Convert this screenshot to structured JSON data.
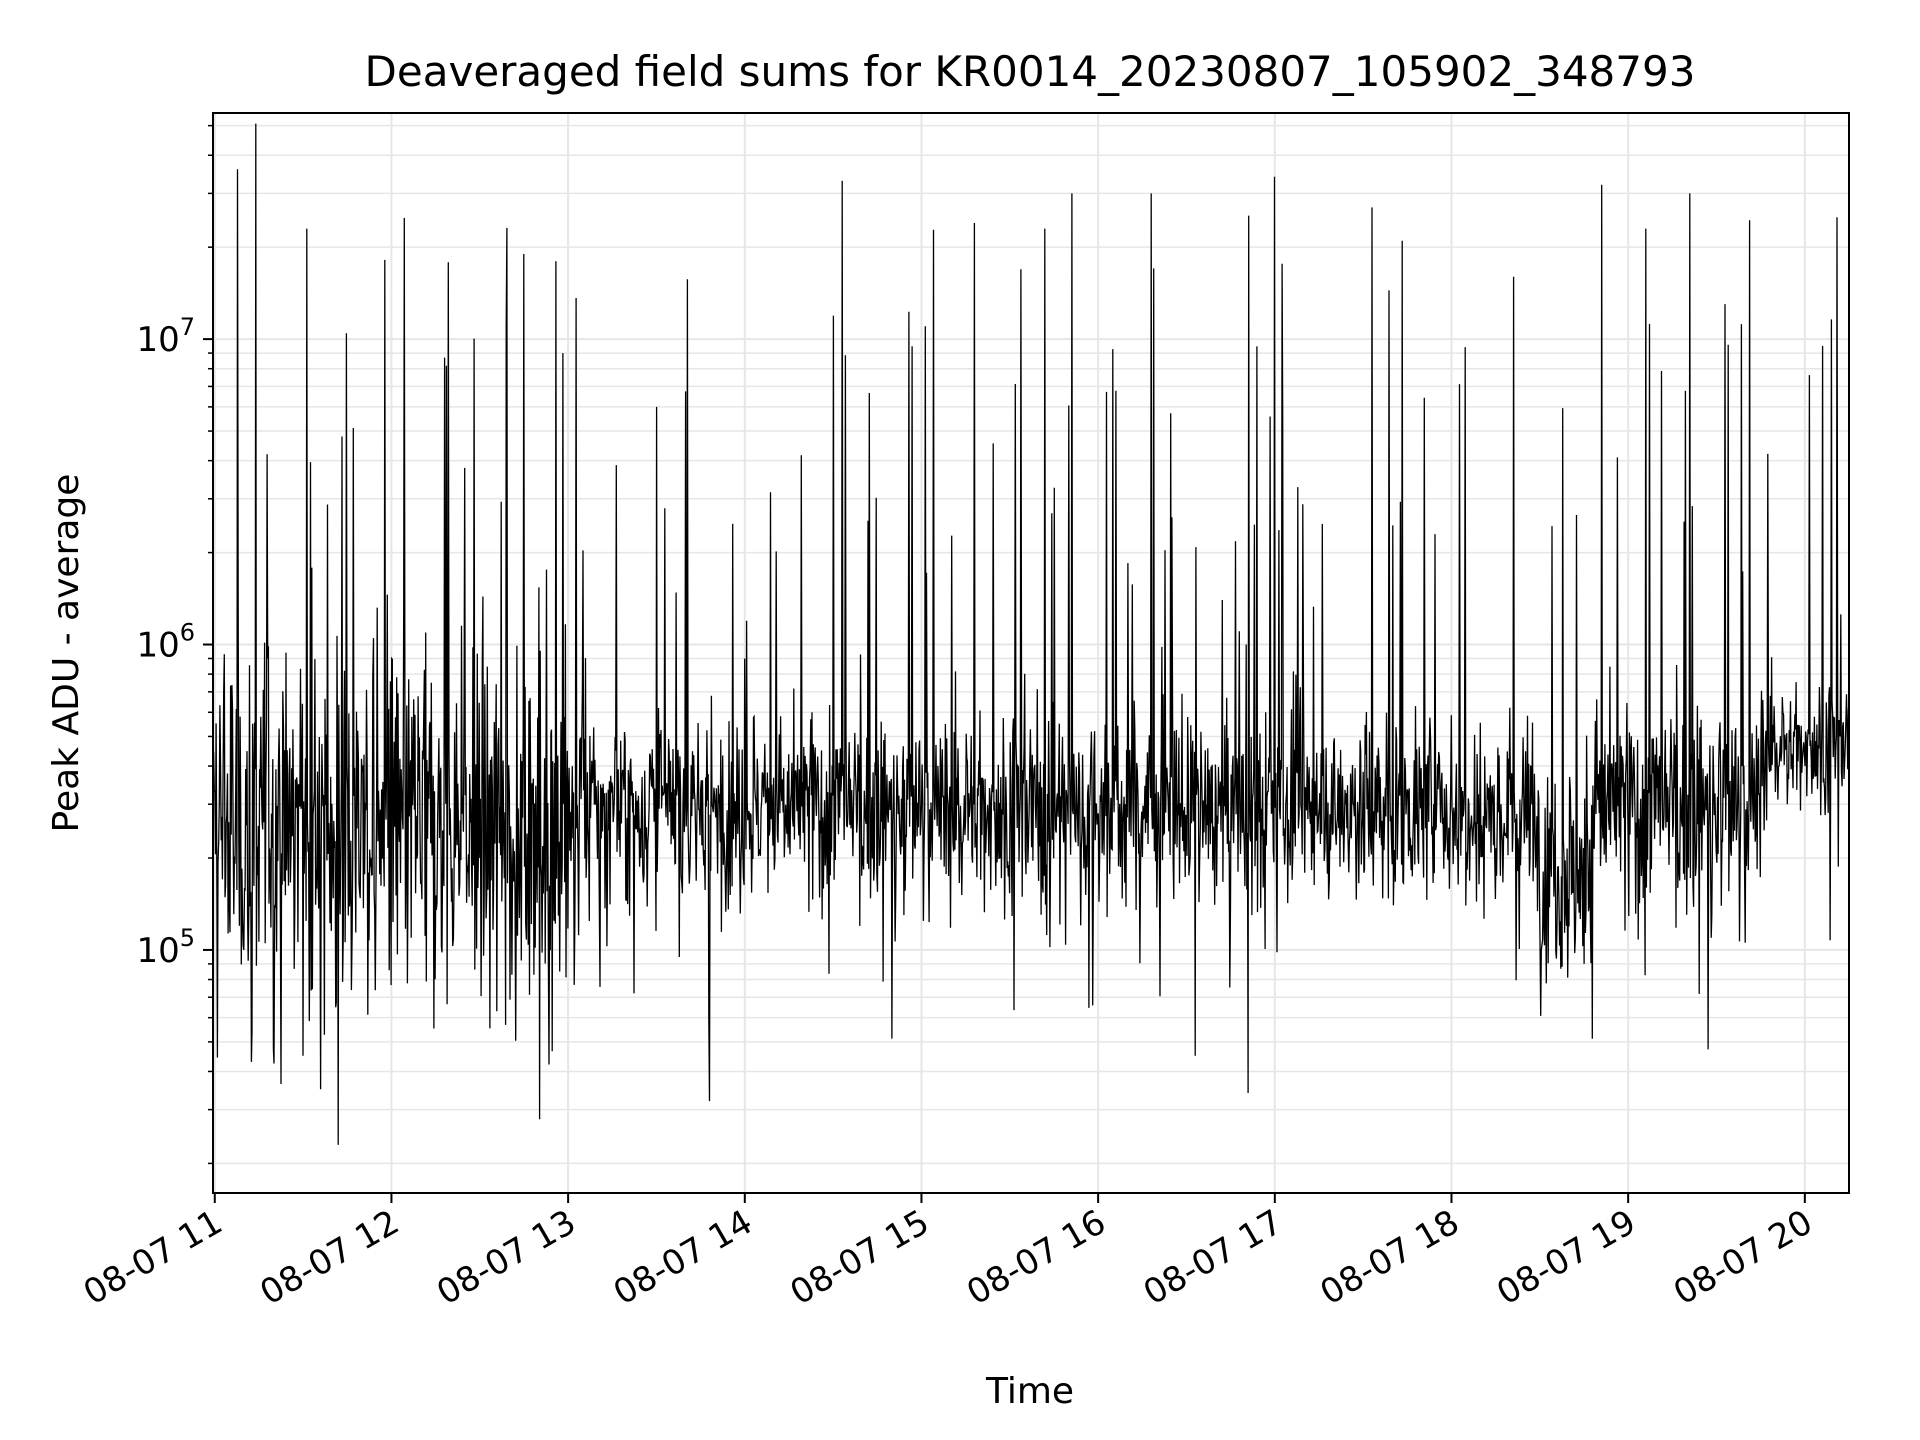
{
  "chart_data": {
    "type": "line",
    "title": "Deaveraged field sums for KR0014_20230807_105902_348793",
    "xlabel": "Time",
    "ylabel": "Peak ADU - average",
    "yscale": "log",
    "grid": "on (major and minor)",
    "line_color": "#000000",
    "grid_color": "#e6e6e6",
    "x_ticks": [
      "08-07 11",
      "08-07 12",
      "08-07 13",
      "08-07 14",
      "08-07 15",
      "08-07 16",
      "08-07 17",
      "08-07 18",
      "08-07 19",
      "08-07 20"
    ],
    "y_ticks": [
      {
        "base": "10",
        "exp": "5",
        "value": 100000
      },
      {
        "base": "10",
        "exp": "6",
        "value": 1000000
      },
      {
        "base": "10",
        "exp": "7",
        "value": 10000000
      }
    ],
    "x_range_hours": [
      10.99,
      20.25
    ],
    "ylim": [
      16000,
      55000000
    ],
    "series": [
      {
        "x_hours": [
          10.99,
          11.05,
          11.13,
          11.14,
          11.3,
          11.5,
          11.52,
          11.6,
          11.7,
          11.72,
          11.75,
          12.0,
          12.3,
          12.5,
          12.65,
          12.75,
          12.8,
          12.93,
          12.97,
          13.05,
          13.5,
          13.65,
          13.8,
          14.0,
          14.38,
          14.55,
          14.6,
          14.9,
          15.15,
          15.3,
          15.6,
          15.7,
          15.85,
          16.0,
          16.3,
          16.55,
          16.85,
          16.95,
          17.0,
          17.4,
          17.55,
          17.9,
          18.1,
          18.35,
          18.55,
          18.75,
          18.85,
          19.1,
          19.3,
          19.35,
          19.6,
          19.9,
          20.0,
          20.1,
          20.2,
          20.25
        ],
        "peak_values": [
          180000,
          700000,
          36000000,
          120000,
          900000,
          45000,
          23000000,
          35000,
          23000,
          4800000,
          400000,
          900000,
          8700000,
          200000,
          11000000,
          19000000,
          300000,
          18000000,
          9000000,
          250000,
          6000000,
          300000,
          32000,
          900000,
          600000,
          33000000,
          250000,
          130000,
          300000,
          24000000,
          300000,
          23000000,
          30000000,
          280000,
          30000000,
          45000,
          34000,
          600000,
          34000000,
          300000,
          27000000,
          300000,
          300000,
          16000000,
          250000,
          90000,
          32000000,
          23000000,
          300000,
          30000000,
          400000,
          300000,
          400000,
          9500000,
          500000,
          650000
        ]
      }
    ]
  }
}
